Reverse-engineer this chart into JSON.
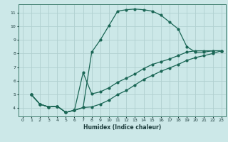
{
  "xlabel": "Humidex (Indice chaleur)",
  "bg_color": "#cce8e8",
  "grid_color": "#b0d0d0",
  "line_color": "#1a6655",
  "xlim": [
    -0.5,
    23.5
  ],
  "ylim": [
    3.4,
    11.6
  ],
  "xticks": [
    0,
    1,
    2,
    3,
    4,
    5,
    6,
    7,
    8,
    9,
    10,
    11,
    12,
    13,
    14,
    15,
    16,
    17,
    18,
    19,
    20,
    21,
    22,
    23
  ],
  "yticks": [
    4,
    5,
    6,
    7,
    8,
    9,
    10,
    11
  ],
  "line1_x": [
    1,
    2,
    3,
    4,
    5,
    6,
    7,
    8,
    9,
    10,
    11,
    12,
    13,
    14,
    15,
    16,
    17,
    18,
    19,
    20,
    21,
    22,
    23
  ],
  "line1_y": [
    5.0,
    4.3,
    4.1,
    4.15,
    3.7,
    3.85,
    4.05,
    8.1,
    9.0,
    10.05,
    11.1,
    11.2,
    11.25,
    11.2,
    11.1,
    10.8,
    10.3,
    9.8,
    8.5,
    8.1,
    8.1,
    8.2,
    8.2
  ],
  "line2_x": [
    1,
    2,
    3,
    4,
    5,
    6,
    7,
    8,
    9,
    10,
    11,
    12,
    13,
    14,
    15,
    16,
    17,
    18,
    19,
    20,
    21,
    22,
    23
  ],
  "line2_y": [
    5.0,
    4.3,
    4.1,
    4.15,
    3.7,
    3.85,
    6.6,
    5.05,
    5.2,
    5.5,
    5.9,
    6.2,
    6.5,
    6.9,
    7.2,
    7.4,
    7.6,
    7.85,
    8.1,
    8.2,
    8.2,
    8.2,
    8.2
  ],
  "line3_x": [
    1,
    2,
    3,
    4,
    5,
    6,
    7,
    8,
    9,
    10,
    11,
    12,
    13,
    14,
    15,
    16,
    17,
    18,
    19,
    20,
    21,
    22,
    23
  ],
  "line3_y": [
    5.0,
    4.3,
    4.1,
    4.15,
    3.7,
    3.85,
    4.05,
    4.1,
    4.3,
    4.6,
    5.0,
    5.3,
    5.7,
    6.1,
    6.4,
    6.7,
    6.95,
    7.2,
    7.5,
    7.7,
    7.85,
    8.0,
    8.2
  ]
}
